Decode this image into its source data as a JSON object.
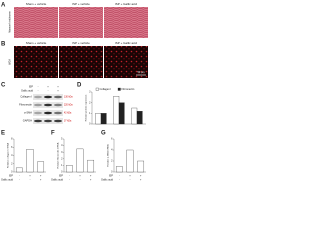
{
  "panels": {
    "a": {
      "label": "A",
      "row_label": "Masson's trichrome",
      "columns": [
        "Sham + vehicle",
        "ISP + vehicle",
        "ISP + Gallic acid"
      ]
    },
    "b": {
      "label": "B",
      "row_label": "WGA",
      "columns": [
        "Sham + vehicle",
        "ISP + vehicle",
        "ISP + Gallic acid"
      ],
      "scale_bar": "50 μm"
    },
    "c": {
      "label": "C",
      "bands": [
        "Collagen I",
        "Fibronectin",
        "α-SMA",
        "GAPDH"
      ],
      "sizes": [
        "130 kDa",
        "220 kDa",
        "42 kDa",
        "37 kDa"
      ]
    },
    "d": {
      "label": "D",
      "ylabel": "Relative protein expression",
      "ylim": [
        0,
        3
      ],
      "yticks": [
        0,
        1,
        2,
        3
      ],
      "series": [
        {
          "name": "Collagen I",
          "color": "#ffffff",
          "values": [
            1,
            2.6,
            1.5
          ]
        },
        {
          "name": "Fibronectin",
          "color": "#222222",
          "values": [
            1,
            2.0,
            1.2
          ]
        }
      ]
    },
    "e": {
      "label": "E",
      "ylabel": "Relative collagen I mRNA",
      "ylim": [
        0,
        8
      ],
      "yticks": [
        0,
        2,
        4,
        6,
        8
      ],
      "series": [
        {
          "name": "Collagen I",
          "color": "#ffffff",
          "values": [
            1,
            5.5,
            2.5
          ]
        }
      ]
    },
    "f": {
      "label": "F",
      "ylabel": "Relative fibronectin mRNA",
      "ylim": [
        0,
        5
      ],
      "yticks": [
        0,
        1,
        2,
        3,
        4,
        5
      ],
      "series": [
        {
          "name": "Fibronectin",
          "color": "#ffffff",
          "values": [
            1,
            3.5,
            1.8
          ]
        }
      ]
    },
    "g": {
      "label": "G",
      "ylabel": "Relative α-SMA mRNA",
      "ylim": [
        0,
        6
      ],
      "yticks": [
        0,
        2,
        4,
        6
      ],
      "series": [
        {
          "name": "α-SMA",
          "color": "#ffffff",
          "values": [
            1,
            4,
            2
          ]
        }
      ]
    }
  },
  "conditions": [
    {
      "name": "ISP",
      "signs": [
        "-",
        "+",
        "+"
      ]
    },
    {
      "name": "Gallic acid",
      "signs": [
        "-",
        "-",
        "+"
      ]
    }
  ]
}
